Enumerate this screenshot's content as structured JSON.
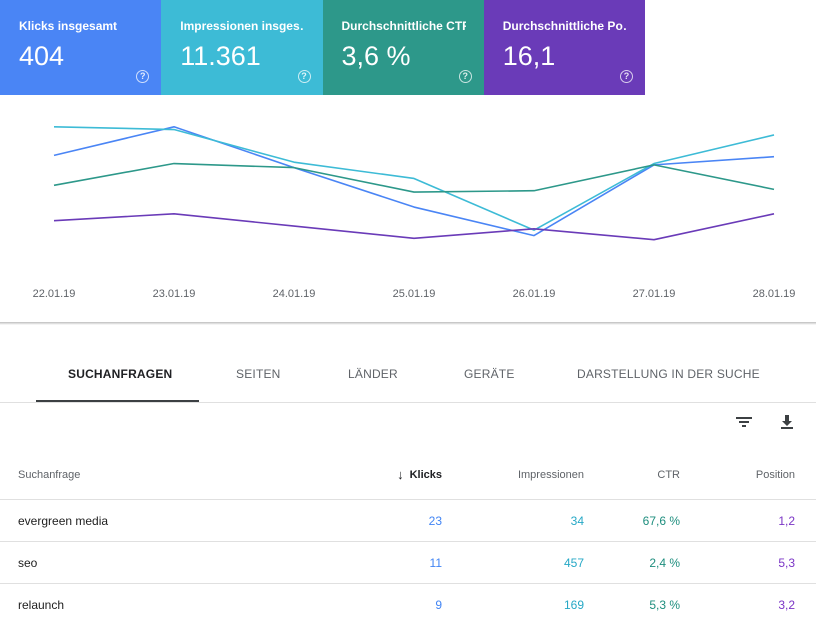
{
  "cards": [
    {
      "title": "Klicks insgesamt",
      "value": "404",
      "color": "#4a85f5"
    },
    {
      "title": "Impressionen insges…",
      "value": "11.361",
      "color": "#3dbbd6"
    },
    {
      "title": "Durchschnittliche CTR",
      "value": "3,6 %",
      "color": "#2d988a"
    },
    {
      "title": "Durchschnittliche Po…",
      "value": "16,1",
      "color": "#6a3bb8"
    }
  ],
  "help_glyph": "?",
  "chart_data": {
    "type": "line",
    "categories": [
      "22.01.19",
      "23.01.19",
      "24.01.19",
      "25.01.19",
      "26.01.19",
      "27.01.19",
      "28.01.19"
    ],
    "series": [
      {
        "name": "Klicks insgesamt",
        "color": "#4a85f5",
        "values": [
          0.74,
          0.95,
          0.65,
          0.36,
          0.15,
          0.67,
          0.73
        ]
      },
      {
        "name": "Impressionen insges…",
        "color": "#3dbbd6",
        "values": [
          0.95,
          0.93,
          0.69,
          0.57,
          0.19,
          0.68,
          0.89
        ]
      },
      {
        "name": "Durchschnittliche CTR",
        "color": "#2d988a",
        "values": [
          0.52,
          0.68,
          0.65,
          0.47,
          0.48,
          0.67,
          0.49
        ]
      },
      {
        "name": "Durchschnittliche Po…",
        "color": "#6a3bb8",
        "values": [
          0.26,
          0.31,
          0.22,
          0.13,
          0.2,
          0.12,
          0.31
        ]
      }
    ],
    "grid": false,
    "legend": "none"
  },
  "tabs": [
    {
      "label": "SUCHANFRAGEN",
      "active": true
    },
    {
      "label": "SEITEN",
      "active": false
    },
    {
      "label": "LÄNDER",
      "active": false
    },
    {
      "label": "GERÄTE",
      "active": false
    },
    {
      "label": "DARSTELLUNG IN DER SUCHE",
      "active": false
    }
  ],
  "toolbar": {
    "filter_icon": "filter-icon",
    "download_icon": "download-icon"
  },
  "table": {
    "headers": {
      "query": "Suchanfrage",
      "sort_arrow": "↓",
      "clicks": "Klicks",
      "impressions": "Impressionen",
      "ctr": "CTR",
      "position": "Position"
    },
    "rows": [
      {
        "query": "evergreen media",
        "clicks": "23",
        "impressions": "34",
        "ctr": "67,6 %",
        "position": "1,2"
      },
      {
        "query": "seo",
        "clicks": "11",
        "impressions": "457",
        "ctr": "2,4 %",
        "position": "5,3"
      },
      {
        "query": "relaunch",
        "clicks": "9",
        "impressions": "169",
        "ctr": "5,3 %",
        "position": "3,2"
      }
    ]
  }
}
